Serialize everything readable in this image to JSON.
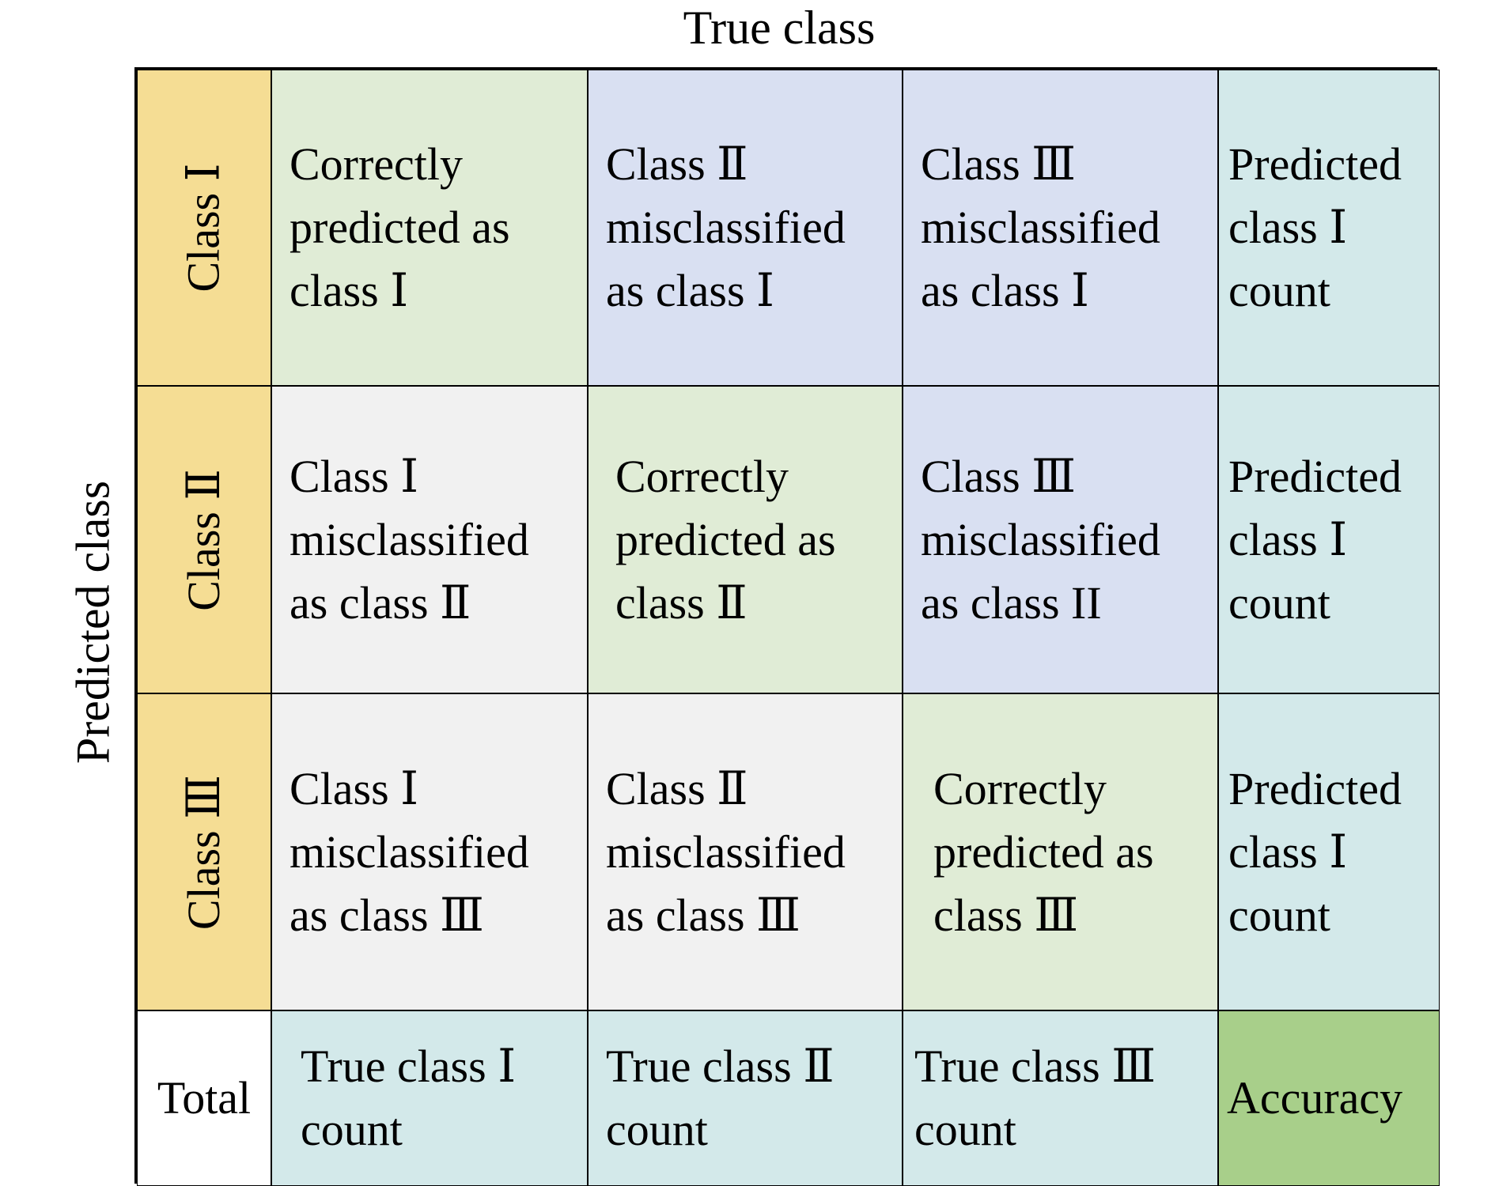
{
  "title": "True class",
  "ylabel": "Predicted class",
  "colors": {
    "row_label": "#f5dd94",
    "correct": "#e0ecd6",
    "upper_misclass": "#d9e0f2",
    "lower_misclass": "#f1f1f1",
    "totals": "#d3e9ea",
    "accuracy": "#a8cf8a"
  },
  "rows": [
    {
      "label": "Class Ⅰ",
      "cells": [
        "Correctly\npredicted as\nclass Ⅰ",
        "Class Ⅱ\nmisclassified\nas class Ⅰ",
        "Class Ⅲ\nmisclassified\nas class Ⅰ",
        "Predicted\nclass Ⅰ\ncount"
      ]
    },
    {
      "label": "Class Ⅱ",
      "cells": [
        "Class Ⅰ\nmisclassified\nas class Ⅱ",
        "Correctly\npredicted as\nclass Ⅱ",
        "Class Ⅲ\nmisclassified\nas class II",
        "Predicted\nclass Ⅰ\ncount"
      ]
    },
    {
      "label": "Class Ⅲ",
      "cells": [
        "Class Ⅰ\nmisclassified\nas class Ⅲ",
        "Class Ⅱ\nmisclassified\nas class Ⅲ",
        "Correctly\npredicted as\nclass Ⅲ",
        "Predicted\nclass Ⅰ\ncount"
      ]
    }
  ],
  "total_row": {
    "label": "Total",
    "cells": [
      "True class Ⅰ\ncount",
      "True class Ⅱ\ncount",
      "True class Ⅲ\ncount",
      "Accuracy"
    ]
  }
}
